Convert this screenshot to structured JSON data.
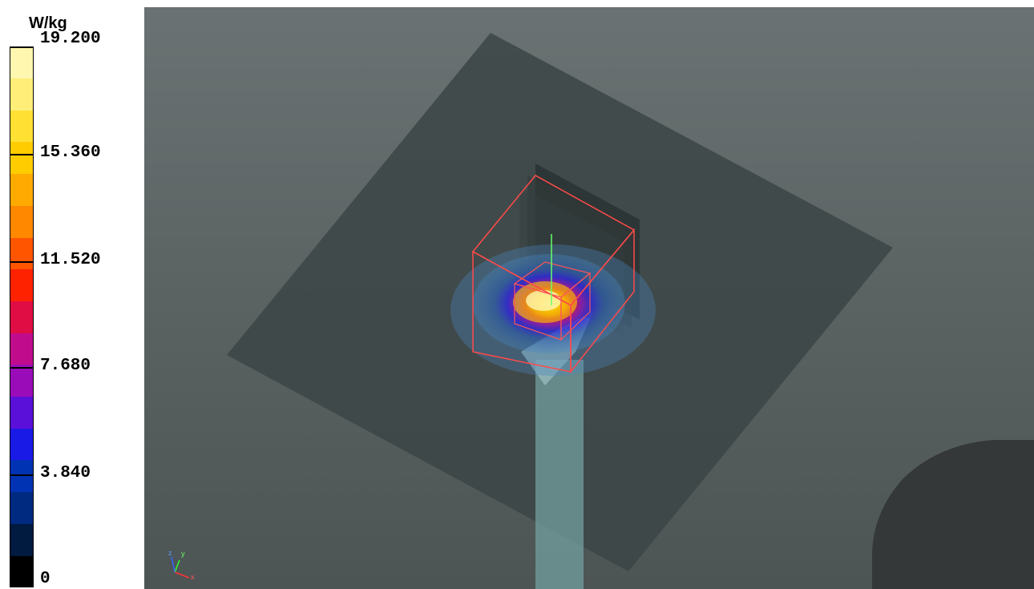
{
  "legend": {
    "unit": "W/kg",
    "ticks": [
      {
        "label": "19.200",
        "value": 19.2
      },
      {
        "label": "15.360",
        "value": 15.36
      },
      {
        "label": "11.520",
        "value": 11.52
      },
      {
        "label": "7.680",
        "value": 7.68
      },
      {
        "label": "3.840",
        "value": 3.84
      },
      {
        "label": "0",
        "value": 0
      }
    ],
    "colors": [
      "#000000",
      "#001a40",
      "#002a80",
      "#0033b3",
      "#1a1ae6",
      "#5a10d9",
      "#9a0cb8",
      "#c00c8c",
      "#e00c44",
      "#ff2200",
      "#ff5500",
      "#ff8800",
      "#ffaa00",
      "#ffcc00",
      "#ffe033",
      "#ffee77",
      "#fff6b0"
    ]
  },
  "viewport": {
    "axes_icon": "xyz-axes-icon",
    "background_color": "#5e6667"
  }
}
